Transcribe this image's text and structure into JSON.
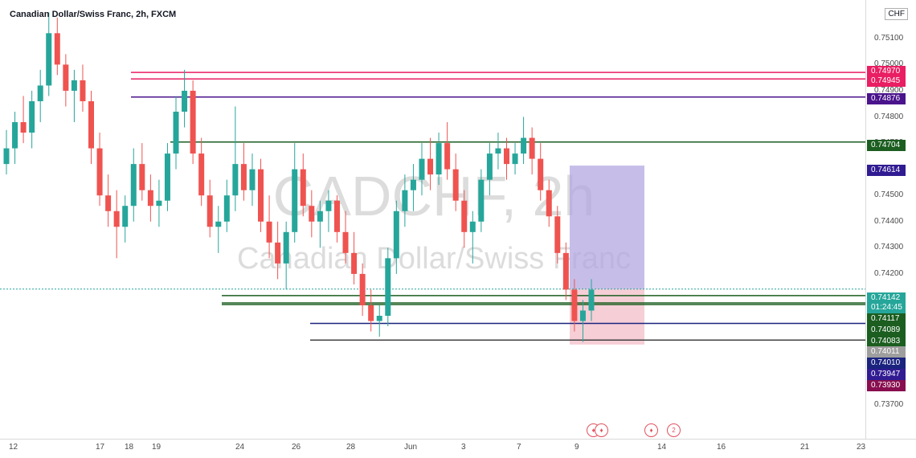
{
  "chart_title": "Canadian Dollar/Swiss Franc, 2h, FXCM",
  "currency_badge": "CHF",
  "watermark_symbol": "CADCHF, 2h",
  "watermark_name": "Canadian Dollar/Swiss Franc",
  "events": [
    "♦",
    "♦",
    "2"
  ],
  "colors": {
    "up": "#26a69a",
    "down": "#ef5350",
    "magenta": "#e91e63",
    "purple": "#4a148c",
    "green": "#1b5e20",
    "navy": "#1a237e",
    "gray": "#757575",
    "profit_zone": "#b3a8e0",
    "loss_zone": "#f4c6cf"
  },
  "chart_data": {
    "type": "candlestick",
    "title": "Canadian Dollar/Swiss Franc, 2h, FXCM",
    "symbol": "CADCHF",
    "timeframe": "2h",
    "exchange": "FXCM",
    "y_ticks": [
      "0.75100",
      "0.75000",
      "0.74900",
      "0.74800",
      "0.74700",
      "0.74600",
      "0.74500",
      "0.74400",
      "0.74300",
      "0.74200",
      "0.73800",
      "0.73700"
    ],
    "x_ticks": [
      "12",
      "17",
      "18",
      "19",
      "24",
      "26",
      "28",
      "Jun",
      "3",
      "7",
      "9",
      "14",
      "16",
      "21",
      "23"
    ],
    "ylim": [
      0.7365,
      0.7521
    ],
    "price_tags": [
      {
        "label": "0.74970",
        "color": "#e91e63"
      },
      {
        "label": "0.74945",
        "color": "#e91e63"
      },
      {
        "label": "0.74876",
        "color": "#4a148c"
      },
      {
        "label": "0.74704",
        "color": "#1b5e20"
      },
      {
        "label": "0.74614",
        "color": "#311b92"
      },
      {
        "label": "0.74142",
        "color": "#26a69a"
      },
      {
        "label": "01:24:45",
        "color": "#26a69a"
      },
      {
        "label": "0.74117",
        "color": "#1b5e20"
      },
      {
        "label": "0.74089",
        "color": "#1b5e20"
      },
      {
        "label": "0.74083",
        "color": "#1b5e20"
      },
      {
        "label": "0.74011",
        "color": "#9e9e9e"
      },
      {
        "label": "0.74010",
        "color": "#1a237e"
      },
      {
        "label": "0.73947",
        "color": "#311b92"
      },
      {
        "label": "0.73930",
        "color": "#880e4f"
      }
    ],
    "horizontal_lines": [
      {
        "price": 0.7497,
        "color": "#e91e63"
      },
      {
        "price": 0.74945,
        "color": "#e91e63"
      },
      {
        "price": 0.74876,
        "color": "#4a148c"
      },
      {
        "price": 0.74704,
        "color": "#1b5e20"
      },
      {
        "price": 0.74117,
        "color": "#1b5e20"
      },
      {
        "price": 0.74089,
        "color": "#1b5e20"
      },
      {
        "price": 0.74083,
        "color": "#1b5e20"
      },
      {
        "price": 0.74011,
        "color": "#1a237e"
      },
      {
        "price": 0.73947,
        "color": "#424242"
      }
    ],
    "position": {
      "entry": 0.74142,
      "take_profit": 0.74614,
      "stop_loss": 0.7393
    },
    "last_price": 0.74142,
    "countdown": "01:24:45",
    "candles": [
      [
        0.7462,
        0.7475,
        0.7458,
        0.7468
      ],
      [
        0.7468,
        0.7482,
        0.7462,
        0.7478
      ],
      [
        0.7478,
        0.7488,
        0.747,
        0.7474
      ],
      [
        0.7474,
        0.749,
        0.7468,
        0.7486
      ],
      [
        0.7486,
        0.7498,
        0.7478,
        0.7492
      ],
      [
        0.7492,
        0.752,
        0.7488,
        0.7512
      ],
      [
        0.7512,
        0.7518,
        0.7496,
        0.75
      ],
      [
        0.75,
        0.7504,
        0.7484,
        0.749
      ],
      [
        0.749,
        0.7498,
        0.7478,
        0.7494
      ],
      [
        0.7494,
        0.75,
        0.7482,
        0.7486
      ],
      [
        0.7486,
        0.749,
        0.7462,
        0.7468
      ],
      [
        0.7468,
        0.7474,
        0.7446,
        0.745
      ],
      [
        0.745,
        0.7458,
        0.7438,
        0.7444
      ],
      [
        0.7444,
        0.7452,
        0.7426,
        0.7438
      ],
      [
        0.7438,
        0.745,
        0.7432,
        0.7446
      ],
      [
        0.7446,
        0.7468,
        0.744,
        0.7462
      ],
      [
        0.7462,
        0.747,
        0.7448,
        0.7452
      ],
      [
        0.7452,
        0.7458,
        0.744,
        0.7446
      ],
      [
        0.7446,
        0.7456,
        0.7438,
        0.7448
      ],
      [
        0.7448,
        0.747,
        0.7444,
        0.7466
      ],
      [
        0.7466,
        0.7488,
        0.746,
        0.7482
      ],
      [
        0.7482,
        0.7498,
        0.7476,
        0.749
      ],
      [
        0.749,
        0.7494,
        0.7462,
        0.7466
      ],
      [
        0.7466,
        0.7472,
        0.7446,
        0.745
      ],
      [
        0.745,
        0.7456,
        0.7434,
        0.7438
      ],
      [
        0.7438,
        0.7446,
        0.7428,
        0.744
      ],
      [
        0.744,
        0.7456,
        0.7436,
        0.745
      ],
      [
        0.745,
        0.7484,
        0.7444,
        0.7462
      ],
      [
        0.7462,
        0.747,
        0.7448,
        0.7452
      ],
      [
        0.7452,
        0.7466,
        0.7446,
        0.746
      ],
      [
        0.746,
        0.7464,
        0.7436,
        0.744
      ],
      [
        0.744,
        0.745,
        0.7426,
        0.7432
      ],
      [
        0.7432,
        0.744,
        0.7418,
        0.7424
      ],
      [
        0.7424,
        0.744,
        0.7414,
        0.7436
      ],
      [
        0.7436,
        0.747,
        0.7432,
        0.746
      ],
      [
        0.746,
        0.7466,
        0.7442,
        0.7446
      ],
      [
        0.7446,
        0.7452,
        0.7434,
        0.744
      ],
      [
        0.744,
        0.7448,
        0.743,
        0.7444
      ],
      [
        0.7444,
        0.7452,
        0.7436,
        0.7448
      ],
      [
        0.7448,
        0.745,
        0.7432,
        0.7436
      ],
      [
        0.7436,
        0.7444,
        0.7424,
        0.7428
      ],
      [
        0.7428,
        0.7436,
        0.7416,
        0.742
      ],
      [
        0.742,
        0.7424,
        0.7404,
        0.7408
      ],
      [
        0.7408,
        0.7414,
        0.7398,
        0.7402
      ],
      [
        0.7402,
        0.7408,
        0.7396,
        0.7404
      ],
      [
        0.7404,
        0.743,
        0.74,
        0.7426
      ],
      [
        0.7426,
        0.7448,
        0.742,
        0.7444
      ],
      [
        0.7444,
        0.7458,
        0.7438,
        0.7452
      ],
      [
        0.7452,
        0.7462,
        0.7444,
        0.7456
      ],
      [
        0.7456,
        0.747,
        0.745,
        0.7464
      ],
      [
        0.7464,
        0.7472,
        0.7452,
        0.7458
      ],
      [
        0.7458,
        0.7474,
        0.7454,
        0.747
      ],
      [
        0.747,
        0.7478,
        0.7456,
        0.746
      ],
      [
        0.746,
        0.7466,
        0.7444,
        0.7448
      ],
      [
        0.7448,
        0.7452,
        0.743,
        0.7436
      ],
      [
        0.7436,
        0.7444,
        0.7424,
        0.744
      ],
      [
        0.744,
        0.746,
        0.7436,
        0.7456
      ],
      [
        0.7456,
        0.747,
        0.745,
        0.7466
      ],
      [
        0.7466,
        0.7474,
        0.746,
        0.7468
      ],
      [
        0.7468,
        0.7472,
        0.7456,
        0.7462
      ],
      [
        0.7462,
        0.747,
        0.7458,
        0.7466
      ],
      [
        0.7466,
        0.748,
        0.7462,
        0.7472
      ],
      [
        0.7472,
        0.7476,
        0.7458,
        0.7464
      ],
      [
        0.7464,
        0.747,
        0.7448,
        0.7452
      ],
      [
        0.7452,
        0.7456,
        0.7438,
        0.7442
      ],
      [
        0.7442,
        0.7446,
        0.7424,
        0.7428
      ],
      [
        0.7428,
        0.7432,
        0.741,
        0.7414
      ],
      [
        0.7414,
        0.7418,
        0.7398,
        0.7402
      ],
      [
        0.7402,
        0.741,
        0.7394,
        0.7406
      ],
      [
        0.7406,
        0.7418,
        0.7402,
        0.7414
      ]
    ]
  }
}
